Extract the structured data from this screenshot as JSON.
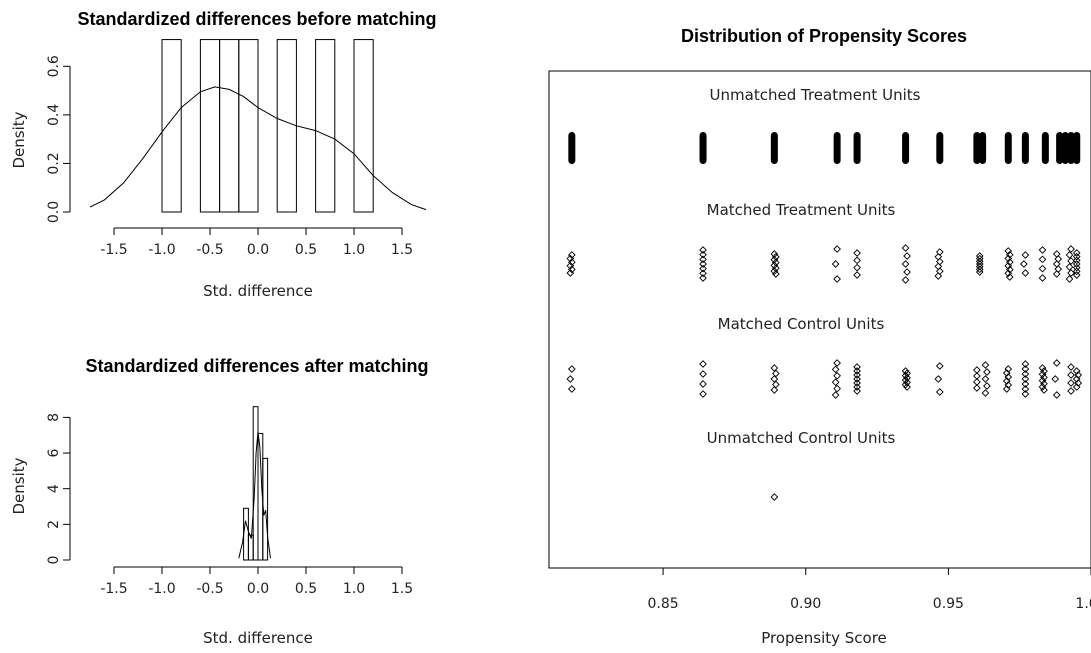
{
  "chart_data": [
    {
      "type": "histogram",
      "title": "Standardized differences before matching",
      "xlabel": "Std. difference",
      "ylabel": "Density",
      "xlim": [
        -1.75,
        1.75
      ],
      "ylim": [
        0,
        0.7
      ],
      "xticks": [
        "-1.5",
        "-1.0",
        "-0.5",
        "0.0",
        "0.5",
        "1.0",
        "1.5"
      ],
      "yticks": [
        "0.0",
        "0.2",
        "0.4",
        "0.6"
      ],
      "bins": [
        {
          "from": -1.0,
          "to": -0.8,
          "density": 0.71
        },
        {
          "from": -0.6,
          "to": -0.4,
          "density": 0.71
        },
        {
          "from": -0.4,
          "to": -0.2,
          "density": 0.71
        },
        {
          "from": -0.2,
          "to": 0.0,
          "density": 0.71
        },
        {
          "from": 0.2,
          "to": 0.4,
          "density": 0.71
        },
        {
          "from": 0.6,
          "to": 0.8,
          "density": 0.71
        },
        {
          "from": 1.0,
          "to": 1.2,
          "density": 0.71
        }
      ],
      "density_curve": {
        "x": [
          -1.75,
          -1.6,
          -1.4,
          -1.2,
          -1.0,
          -0.8,
          -0.6,
          -0.45,
          -0.3,
          -0.15,
          0.0,
          0.2,
          0.4,
          0.6,
          0.8,
          1.0,
          1.2,
          1.4,
          1.6,
          1.75
        ],
        "y": [
          0.02,
          0.05,
          0.12,
          0.22,
          0.33,
          0.43,
          0.495,
          0.515,
          0.505,
          0.475,
          0.43,
          0.385,
          0.355,
          0.335,
          0.3,
          0.24,
          0.15,
          0.08,
          0.03,
          0.01
        ]
      }
    },
    {
      "type": "histogram",
      "title": "Standardized differences after matching",
      "xlabel": "Std. difference",
      "ylabel": "Density",
      "xlim": [
        -1.75,
        1.75
      ],
      "ylim": [
        0,
        9.2
      ],
      "xticks": [
        "-1.5",
        "-1.0",
        "-0.5",
        "0.0",
        "0.5",
        "1.0",
        "1.5"
      ],
      "yticks": [
        "0",
        "2",
        "4",
        "6",
        "8"
      ],
      "bins": [
        {
          "from": -0.15,
          "to": -0.1,
          "density": 2.9
        },
        {
          "from": -0.1,
          "to": -0.05,
          "density": 1.4
        },
        {
          "from": -0.05,
          "to": 0.0,
          "density": 8.6
        },
        {
          "from": 0.0,
          "to": 0.05,
          "density": 7.1
        },
        {
          "from": 0.05,
          "to": 0.1,
          "density": 5.7
        }
      ],
      "density_curve": {
        "x": [
          -0.2,
          -0.16,
          -0.13,
          -0.1,
          -0.07,
          -0.04,
          -0.02,
          0.0,
          0.02,
          0.04,
          0.06,
          0.08,
          0.1,
          0.13
        ],
        "y": [
          0.1,
          1.0,
          2.2,
          1.6,
          1.2,
          3.5,
          6.0,
          7.2,
          6.3,
          4.0,
          2.5,
          2.8,
          1.3,
          0.1
        ]
      }
    },
    {
      "type": "scatter",
      "title": "Distribution of Propensity Scores",
      "xlabel": "Propensity Score",
      "ylabel": "",
      "xlim": [
        0.81,
        1.0
      ],
      "xticks": [
        "0.85",
        "0.90",
        "0.95",
        "1.00"
      ],
      "groups": [
        {
          "name": "Unmatched Treatment Units",
          "marker": "dense",
          "x": [
            0.818,
            0.864,
            0.889,
            0.911,
            0.918,
            0.935,
            0.947,
            0.96,
            0.962,
            0.971,
            0.977,
            0.984,
            0.989,
            0.991,
            0.993,
            0.995
          ]
        },
        {
          "name": "Matched Treatment Units",
          "marker": "open-diamond",
          "x": [
            0.818,
            0.864,
            0.889,
            0.911,
            0.918,
            0.935,
            0.947,
            0.961,
            0.971,
            0.977,
            0.983,
            0.988,
            0.993,
            0.995
          ]
        },
        {
          "name": "Matched Control Units",
          "marker": "open-diamond",
          "x": [
            0.818,
            0.864,
            0.889,
            0.911,
            0.918,
            0.935,
            0.947,
            0.96,
            0.963,
            0.971,
            0.977,
            0.983,
            0.988,
            0.993,
            0.995
          ]
        },
        {
          "name": "Unmatched Control Units",
          "marker": "open-diamond",
          "x": [
            0.889
          ]
        }
      ]
    }
  ]
}
